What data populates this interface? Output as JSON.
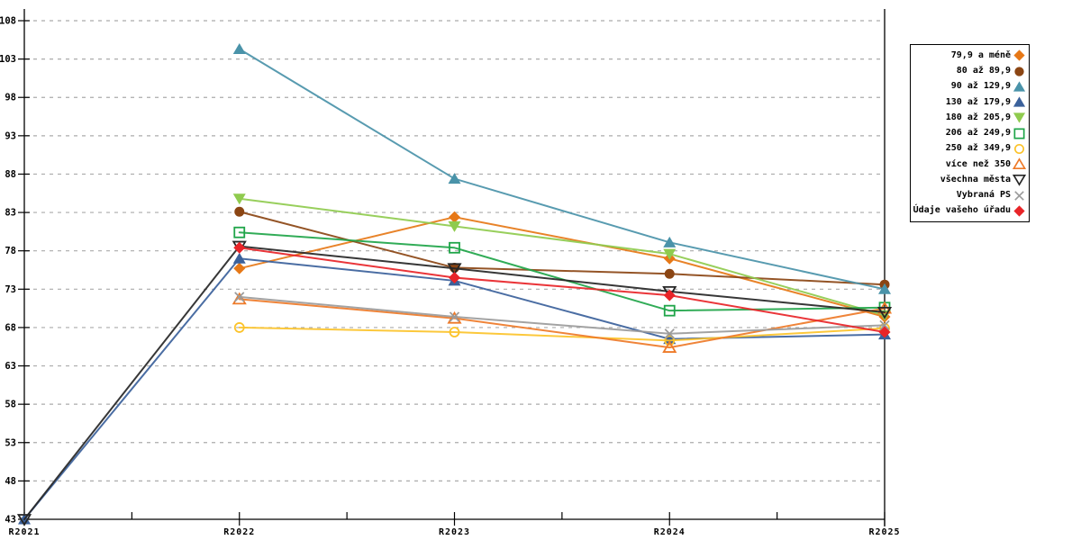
{
  "chart_data": {
    "type": "line",
    "x_labels": [
      "R2021",
      "R2022",
      "R2023",
      "R2024",
      "R2025"
    ],
    "y_ticks": [
      43,
      48,
      53,
      58,
      63,
      68,
      73,
      78,
      83,
      88,
      93,
      98,
      103,
      108
    ],
    "ylim": [
      43,
      108
    ],
    "grid": {
      "horizontal": true,
      "style": "dashed",
      "color": "#ABABAB"
    },
    "axis_color": "#000000",
    "background": "#FFFFFF",
    "legend_position": "right",
    "series": [
      {
        "name": "79,9 a méně",
        "color": "#E67817",
        "marker": "diamond-filled",
        "values": [
          null,
          75.7,
          82.4,
          77.0,
          69.4
        ]
      },
      {
        "name": "80 až 89,9",
        "color": "#8B4513",
        "marker": "circle-filled",
        "values": [
          null,
          83.1,
          75.8,
          75.0,
          73.6
        ]
      },
      {
        "name": "90 až 129,9",
        "color": "#4A93A9",
        "marker": "triangle-up-filled",
        "values": [
          null,
          104.3,
          87.4,
          79.1,
          73.0
        ]
      },
      {
        "name": "130 až 179,9",
        "color": "#3B619B",
        "marker": "triangle-up-filled",
        "values": [
          43,
          77.0,
          74.1,
          66.5,
          67.1
        ]
      },
      {
        "name": "180 až 205,9",
        "color": "#8FCB4E",
        "marker": "triangle-down-filled",
        "values": [
          null,
          84.8,
          81.2,
          77.6,
          69.6
        ]
      },
      {
        "name": "206 až 249,9",
        "color": "#1FA549",
        "marker": "square-open",
        "values": [
          null,
          80.4,
          78.4,
          70.2,
          70.6
        ]
      },
      {
        "name": "250 až 349,9",
        "color": "#FCC32A",
        "marker": "circle-open",
        "values": [
          null,
          68.0,
          67.4,
          66.3,
          67.9
        ]
      },
      {
        "name": "více než 350",
        "color": "#EE7A28",
        "marker": "triangle-up-open",
        "values": [
          null,
          71.7,
          69.2,
          65.4,
          70.5
        ]
      },
      {
        "name": "všechna města",
        "color": "#262626",
        "marker": "triangle-down-open",
        "values": [
          43,
          78.6,
          75.7,
          72.7,
          70.0
        ]
      },
      {
        "name": "Vybraná PS",
        "color": "#9B9B9B",
        "marker": "x",
        "values": [
          null,
          72.0,
          69.4,
          67.2,
          68.3
        ]
      },
      {
        "name": "Údaje vašeho úřadu",
        "color": "#E82428",
        "marker": "diamond-filled",
        "values": [
          null,
          78.4,
          74.5,
          72.2,
          67.4
        ]
      }
    ]
  }
}
